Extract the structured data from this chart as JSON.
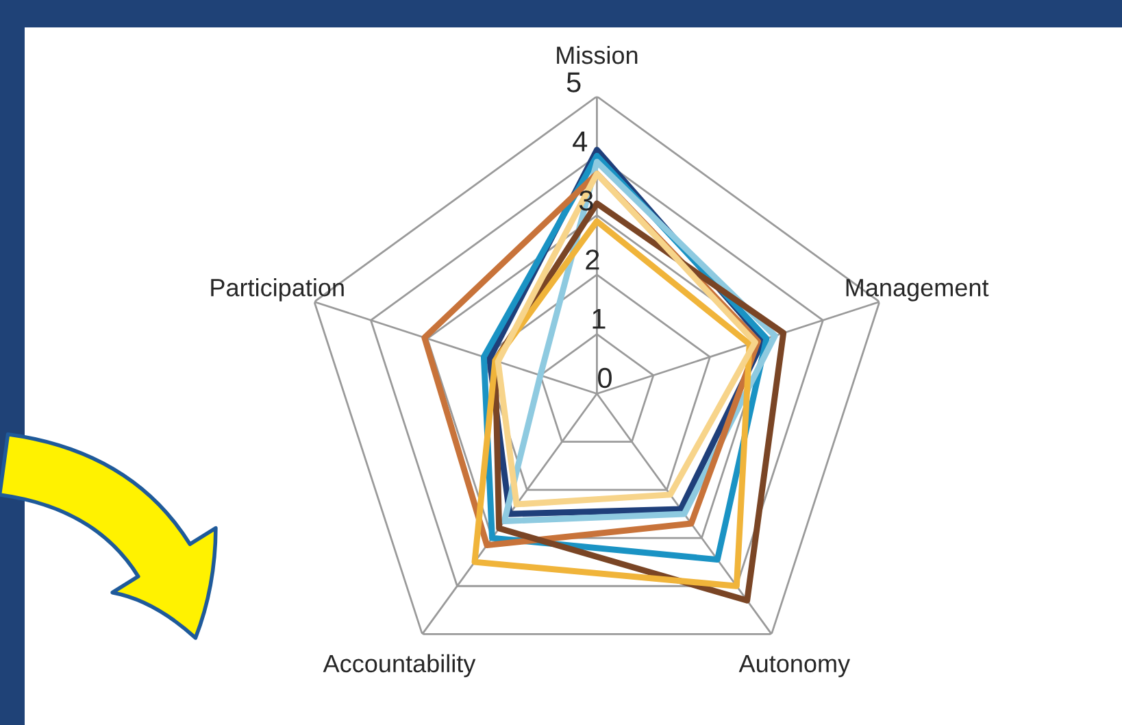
{
  "chart_data": {
    "type": "radar",
    "categories": [
      "Mission",
      "Management",
      "Autonomy",
      "Accountability",
      "Participation"
    ],
    "ylim": [
      0,
      5
    ],
    "yticks": [
      0,
      1,
      2,
      3,
      4,
      5
    ],
    "grid": true,
    "marker": "none",
    "line_style": "solid",
    "series": [
      {
        "color": "#1f3f7a",
        "values": [
          4.1,
          2.95,
          2.4,
          2.5,
          1.9
        ]
      },
      {
        "color": "#1a93c4",
        "values": [
          4.0,
          3.0,
          3.45,
          3.0,
          2.0
        ]
      },
      {
        "color": "#8ecae0",
        "values": [
          3.9,
          3.15,
          2.5,
          2.65,
          1.0
        ]
      },
      {
        "color": "#c8733a",
        "values": [
          3.7,
          2.85,
          2.7,
          3.15,
          3.05
        ]
      },
      {
        "color": "#7a4525",
        "values": [
          3.2,
          3.3,
          4.3,
          2.8,
          1.8
        ]
      },
      {
        "color": "#f0b43a",
        "values": [
          2.9,
          2.7,
          4.0,
          3.5,
          1.8
        ]
      },
      {
        "color": "#f7d48a",
        "values": [
          3.7,
          2.8,
          2.1,
          2.3,
          1.75
        ]
      }
    ]
  }
}
